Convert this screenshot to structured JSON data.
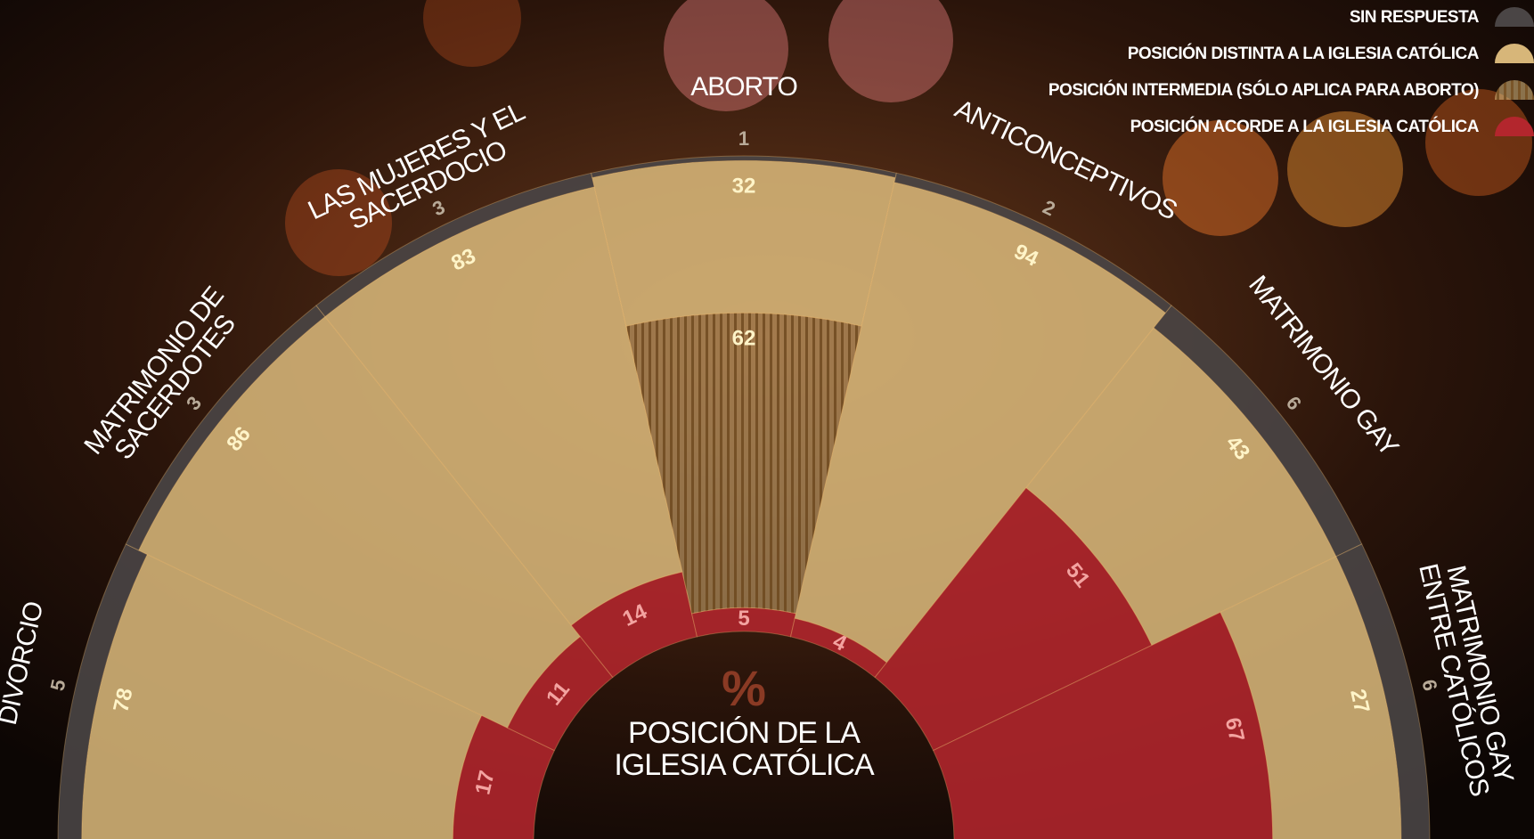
{
  "chart_data": {
    "type": "polar-stacked",
    "categories": [
      "DIVORCIO",
      "MATRIMONIO DE SACERDOTES",
      "LAS MUJERES Y EL SACERDOCIO",
      "ABORTO",
      "ANTICONCEPTIVOS",
      "MATRIMONIO GAY",
      "MATRIMONIO GAY ENTRE CATÓLICOS"
    ],
    "series": [
      {
        "name": "POSICIÓN ACORDE A LA IGLESIA CATÓLICA",
        "color": "#b3262d",
        "values": [
          17,
          11,
          14,
          5,
          4,
          51,
          67
        ]
      },
      {
        "name": "POSICIÓN INTERMEDIA (SÓLO APLICA PARA ABORTO)",
        "color": "#8a6634",
        "values": [
          null,
          null,
          null,
          62,
          null,
          null,
          null
        ]
      },
      {
        "name": "POSICIÓN DISTINTA A LA IGLESIA CATÓLICA",
        "color": "#d7b679",
        "values": [
          78,
          86,
          83,
          32,
          94,
          43,
          27
        ]
      },
      {
        "name": "SIN RESPUESTA",
        "color": "#4a4545",
        "values": [
          5,
          3,
          3,
          1,
          2,
          6,
          6
        ]
      }
    ],
    "center_symbol": "%",
    "center_label": "POSICIÓN DE LA IGLESIA CATÓLICA"
  }
}
